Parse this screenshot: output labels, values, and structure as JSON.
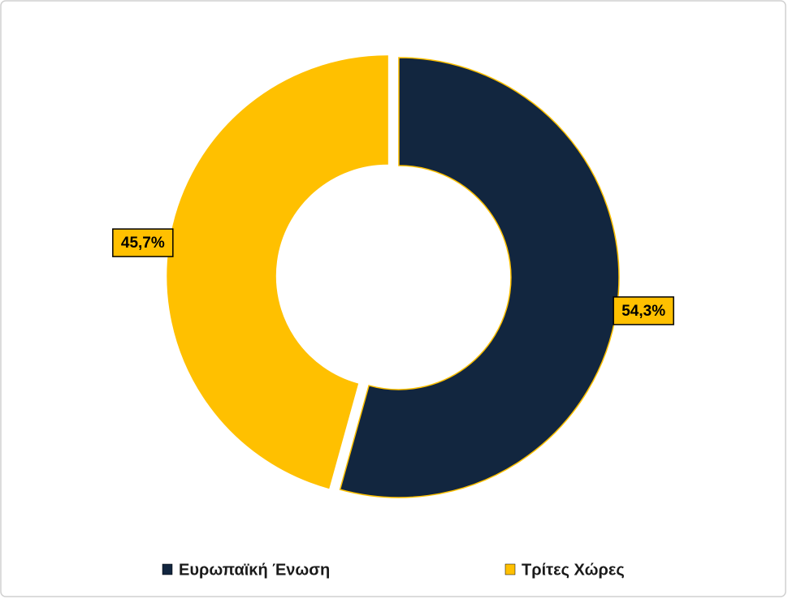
{
  "chart_data": {
    "type": "donut",
    "categories": [
      "Ευρωπαϊκή Ένωση",
      "Τρίτες Χώρες"
    ],
    "values": [
      54.3,
      45.7
    ],
    "value_labels": [
      "54,3%",
      "45,7%"
    ],
    "colors": [
      "#12263f",
      "#ffc000"
    ],
    "legend": "bottom"
  }
}
